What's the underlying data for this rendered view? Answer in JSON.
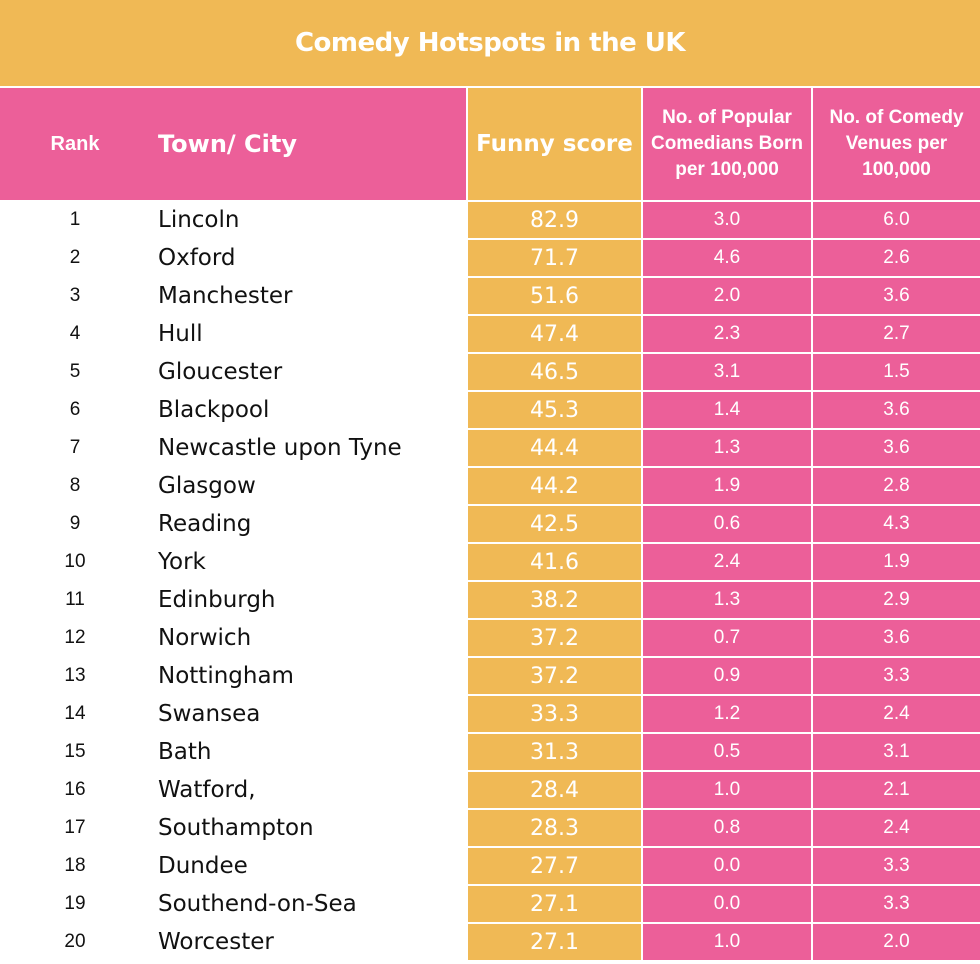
{
  "chart_data": {
    "type": "table",
    "title": "Comedy Hotspots in the UK",
    "columns": [
      "Rank",
      "Town/ City",
      "Funny score",
      "No. of Popular Comedians Born per 100,000",
      "No. of Comedy Venues per 100,000"
    ],
    "rows": [
      [
        "1",
        "Lincoln",
        "82.9",
        "3.0",
        "6.0"
      ],
      [
        "2",
        "Oxford",
        "71.7",
        "4.6",
        "2.6"
      ],
      [
        "3",
        "Manchester",
        "51.6",
        "2.0",
        "3.6"
      ],
      [
        "4",
        "Hull",
        "47.4",
        "2.3",
        "2.7"
      ],
      [
        "5",
        "Gloucester",
        "46.5",
        "3.1",
        "1.5"
      ],
      [
        "6",
        "Blackpool",
        "45.3",
        "1.4",
        "3.6"
      ],
      [
        "7",
        "Newcastle upon Tyne",
        "44.4",
        "1.3",
        "3.6"
      ],
      [
        "8",
        "Glasgow",
        "44.2",
        "1.9",
        "2.8"
      ],
      [
        "9",
        "Reading",
        "42.5",
        "0.6",
        "4.3"
      ],
      [
        "10",
        "York",
        "41.6",
        "2.4",
        "1.9"
      ],
      [
        "11",
        "Edinburgh",
        "38.2",
        "1.3",
        "2.9"
      ],
      [
        "12",
        "Norwich",
        "37.2",
        "0.7",
        "3.6"
      ],
      [
        "13",
        "Nottingham",
        "37.2",
        "0.9",
        "3.3"
      ],
      [
        "14",
        "Swansea",
        "33.3",
        "1.2",
        "2.4"
      ],
      [
        "15",
        "Bath",
        "31.3",
        "0.5",
        "3.1"
      ],
      [
        "16",
        "Watford,",
        "28.4",
        "1.0",
        "2.1"
      ],
      [
        "17",
        "Southampton",
        "28.3",
        "0.8",
        "2.4"
      ],
      [
        "18",
        "Dundee",
        "27.7",
        "0.0",
        "3.3"
      ],
      [
        "19",
        "Southend-on-Sea",
        "27.1",
        "0.0",
        "3.3"
      ],
      [
        "20",
        "Worcester",
        "27.1",
        "1.0",
        "2.0"
      ]
    ]
  },
  "colors": {
    "yellow": "#f0b955",
    "pink": "#ec5f99",
    "white": "#ffffff",
    "text_dark": "#111111"
  }
}
